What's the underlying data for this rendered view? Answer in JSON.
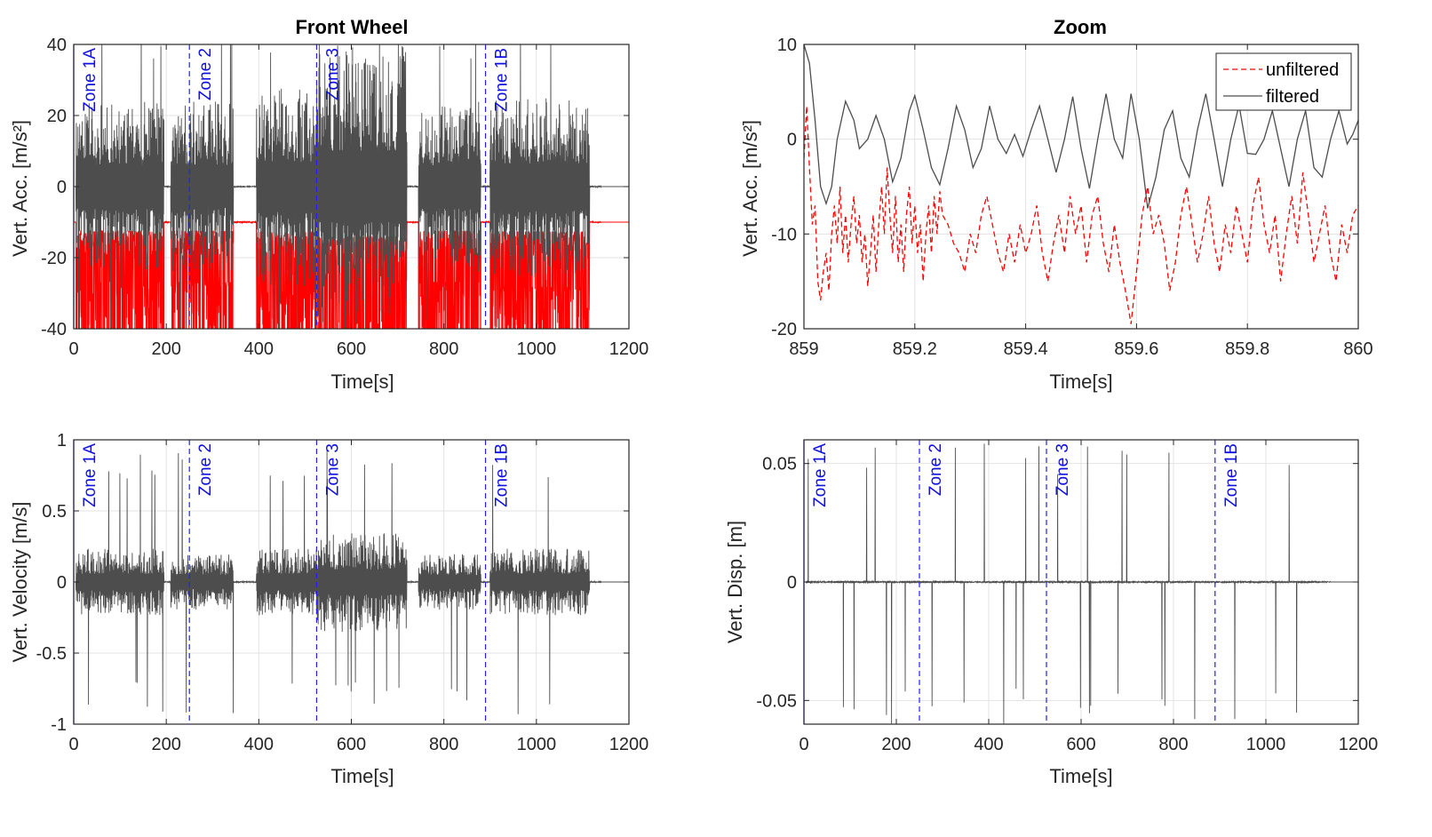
{
  "chart_data": [
    {
      "id": "acc",
      "type": "line",
      "title": "Front Wheel",
      "xlabel": "Time[s]",
      "ylabel": "Vert. Acc. [m/s²]",
      "xlim": [
        0,
        1200
      ],
      "ylim": [
        -40,
        40
      ],
      "xticks": [
        0,
        200,
        400,
        600,
        800,
        1000,
        1200
      ],
      "yticks": [
        -40,
        -20,
        0,
        20,
        40
      ],
      "grid": true,
      "zones": [
        {
          "x": 0,
          "label": "Zone 1A"
        },
        {
          "x": 250,
          "label": "Zone 2"
        },
        {
          "x": 525,
          "label": "Zone 3"
        },
        {
          "x": 890,
          "label": "Zone 1B"
        }
      ],
      "segments": [
        {
          "start": 5,
          "end": 195,
          "amp": 0.6
        },
        {
          "start": 210,
          "end": 345,
          "amp": 0.6
        },
        {
          "start": 395,
          "end": 525,
          "amp": 0.7
        },
        {
          "start": 525,
          "end": 720,
          "amp": 1.0
        },
        {
          "start": 745,
          "end": 880,
          "amp": 0.6
        },
        {
          "start": 900,
          "end": 1115,
          "amp": 0.65
        }
      ],
      "series": [
        {
          "name": "unfiltered",
          "color": "#ff0000",
          "offset": -10,
          "envelope_peak": 40,
          "quiet_level": -10
        },
        {
          "name": "filtered",
          "color": "#4d4d4d",
          "offset": 0,
          "envelope_peak": 40,
          "quiet_level": 0
        }
      ]
    },
    {
      "id": "zoom",
      "type": "line",
      "title": "Zoom",
      "xlabel": "Time[s]",
      "ylabel": "Vert. Acc. [m/s²]",
      "xlim": [
        859,
        860
      ],
      "ylim": [
        -20,
        10
      ],
      "xticks": [
        859,
        859.2,
        859.4,
        859.6,
        859.8,
        860
      ],
      "yticks": [
        -20,
        -10,
        0,
        10
      ],
      "grid": true,
      "legend": {
        "position": "top-right",
        "entries": [
          "unfiltered",
          "filtered"
        ]
      },
      "series": [
        {
          "name": "filtered",
          "color": "#4d4d4d",
          "style": "solid",
          "points": [
            [
              859.0,
              10
            ],
            [
              859.01,
              8
            ],
            [
              859.02,
              2
            ],
            [
              859.03,
              -5
            ],
            [
              859.04,
              -6.8
            ],
            [
              859.05,
              -5
            ],
            [
              859.06,
              0
            ],
            [
              859.075,
              4
            ],
            [
              859.09,
              2
            ],
            [
              859.1,
              -1
            ],
            [
              859.115,
              0
            ],
            [
              859.13,
              2.5
            ],
            [
              859.145,
              0
            ],
            [
              859.16,
              -4.5
            ],
            [
              859.175,
              -2
            ],
            [
              859.19,
              3
            ],
            [
              859.2,
              4.6
            ],
            [
              859.215,
              1
            ],
            [
              859.23,
              -3
            ],
            [
              859.245,
              -4.8
            ],
            [
              859.26,
              -1
            ],
            [
              859.275,
              3.5
            ],
            [
              859.29,
              1
            ],
            [
              859.305,
              -3
            ],
            [
              859.32,
              -1
            ],
            [
              859.335,
              3.5
            ],
            [
              859.35,
              0
            ],
            [
              859.365,
              -1.5
            ],
            [
              859.38,
              0.5
            ],
            [
              859.395,
              -1.8
            ],
            [
              859.41,
              1
            ],
            [
              859.425,
              3.5
            ],
            [
              859.44,
              0
            ],
            [
              859.455,
              -3.5
            ],
            [
              859.47,
              0
            ],
            [
              859.485,
              4.5
            ],
            [
              859.5,
              -1
            ],
            [
              859.515,
              -5.2
            ],
            [
              859.53,
              0
            ],
            [
              859.545,
              4.8
            ],
            [
              859.56,
              0
            ],
            [
              859.575,
              -2
            ],
            [
              859.59,
              4.8
            ],
            [
              859.605,
              0
            ],
            [
              859.62,
              -7.3
            ],
            [
              859.635,
              -4
            ],
            [
              859.65,
              1
            ],
            [
              859.665,
              3
            ],
            [
              859.68,
              -2
            ],
            [
              859.695,
              -4
            ],
            [
              859.71,
              1
            ],
            [
              859.725,
              4.8
            ],
            [
              859.74,
              0
            ],
            [
              859.755,
              -5
            ],
            [
              859.77,
              0
            ],
            [
              859.785,
              3.6
            ],
            [
              859.8,
              -1.5
            ],
            [
              859.815,
              -1.6
            ],
            [
              859.83,
              0
            ],
            [
              859.845,
              3
            ],
            [
              859.86,
              -1
            ],
            [
              859.875,
              -5
            ],
            [
              859.89,
              0
            ],
            [
              859.905,
              3
            ],
            [
              859.92,
              -3
            ],
            [
              859.935,
              -4
            ],
            [
              859.95,
              0
            ],
            [
              859.965,
              3
            ],
            [
              859.98,
              -0.5
            ],
            [
              859.99,
              0.5
            ],
            [
              860.0,
              2
            ]
          ]
        },
        {
          "name": "unfiltered",
          "color": "#ff0000",
          "style": "dashed",
          "points": [
            [
              859.0,
              -2
            ],
            [
              859.005,
              3.5
            ],
            [
              859.01,
              -3
            ],
            [
              859.015,
              -9
            ],
            [
              859.02,
              -7
            ],
            [
              859.025,
              -15
            ],
            [
              859.03,
              -17
            ],
            [
              859.035,
              -14
            ],
            [
              859.04,
              -12
            ],
            [
              859.045,
              -16
            ],
            [
              859.05,
              -10
            ],
            [
              859.055,
              -7
            ],
            [
              859.06,
              -11
            ],
            [
              859.065,
              -5
            ],
            [
              859.07,
              -12
            ],
            [
              859.075,
              -8
            ],
            [
              859.08,
              -13
            ],
            [
              859.085,
              -9
            ],
            [
              859.09,
              -6
            ],
            [
              859.095,
              -11
            ],
            [
              859.1,
              -8
            ],
            [
              859.105,
              -13
            ],
            [
              859.11,
              -10
            ],
            [
              859.115,
              -15.5
            ],
            [
              859.12,
              -12
            ],
            [
              859.125,
              -8
            ],
            [
              859.13,
              -14
            ],
            [
              859.135,
              -9
            ],
            [
              859.14,
              -5
            ],
            [
              859.145,
              -10
            ],
            [
              859.15,
              -3
            ],
            [
              859.155,
              -8
            ],
            [
              859.16,
              -12
            ],
            [
              859.165,
              -6
            ],
            [
              859.17,
              -13
            ],
            [
              859.175,
              -9
            ],
            [
              859.18,
              -14
            ],
            [
              859.185,
              -8
            ],
            [
              859.19,
              -5
            ],
            [
              859.195,
              -11
            ],
            [
              859.2,
              -7
            ],
            [
              859.205,
              -12
            ],
            [
              859.21,
              -9
            ],
            [
              859.215,
              -15
            ],
            [
              859.22,
              -10
            ],
            [
              859.225,
              -7
            ],
            [
              859.23,
              -12
            ],
            [
              859.235,
              -6
            ],
            [
              859.24,
              -10
            ],
            [
              859.245,
              -5.5
            ],
            [
              859.25,
              -8
            ],
            [
              859.26,
              -9
            ],
            [
              859.27,
              -11
            ],
            [
              859.28,
              -12
            ],
            [
              859.29,
              -14
            ],
            [
              859.3,
              -10
            ],
            [
              859.31,
              -12
            ],
            [
              859.32,
              -8
            ],
            [
              859.33,
              -6
            ],
            [
              859.34,
              -9
            ],
            [
              859.35,
              -12
            ],
            [
              859.36,
              -14
            ],
            [
              859.37,
              -10
            ],
            [
              859.38,
              -13
            ],
            [
              859.39,
              -9
            ],
            [
              859.4,
              -12
            ],
            [
              859.41,
              -10
            ],
            [
              859.42,
              -7
            ],
            [
              859.43,
              -12
            ],
            [
              859.44,
              -15
            ],
            [
              859.45,
              -11
            ],
            [
              859.46,
              -8
            ],
            [
              859.47,
              -12
            ],
            [
              859.48,
              -6
            ],
            [
              859.49,
              -10
            ],
            [
              859.5,
              -7
            ],
            [
              859.51,
              -13
            ],
            [
              859.52,
              -8
            ],
            [
              859.53,
              -6
            ],
            [
              859.54,
              -11
            ],
            [
              859.55,
              -14
            ],
            [
              859.56,
              -9
            ],
            [
              859.57,
              -13
            ],
            [
              859.58,
              -16
            ],
            [
              859.59,
              -19.5
            ],
            [
              859.6,
              -14
            ],
            [
              859.61,
              -8
            ],
            [
              859.62,
              -5
            ],
            [
              859.63,
              -10
            ],
            [
              859.64,
              -8
            ],
            [
              859.65,
              -11
            ],
            [
              859.66,
              -16
            ],
            [
              859.67,
              -13
            ],
            [
              859.68,
              -8
            ],
            [
              859.69,
              -5
            ],
            [
              859.7,
              -9
            ],
            [
              859.71,
              -13
            ],
            [
              859.72,
              -10
            ],
            [
              859.73,
              -6
            ],
            [
              859.74,
              -11
            ],
            [
              859.75,
              -14
            ],
            [
              859.76,
              -9
            ],
            [
              859.77,
              -12
            ],
            [
              859.78,
              -7
            ],
            [
              859.79,
              -10
            ],
            [
              859.8,
              -13
            ],
            [
              859.81,
              -7
            ],
            [
              859.82,
              -4
            ],
            [
              859.83,
              -9
            ],
            [
              859.84,
              -12
            ],
            [
              859.85,
              -8
            ],
            [
              859.86,
              -15
            ],
            [
              859.87,
              -10
            ],
            [
              859.88,
              -6
            ],
            [
              859.89,
              -11
            ],
            [
              859.9,
              -3.5
            ],
            [
              859.91,
              -8
            ],
            [
              859.92,
              -13
            ],
            [
              859.93,
              -10
            ],
            [
              859.94,
              -7
            ],
            [
              859.95,
              -12
            ],
            [
              859.96,
              -15
            ],
            [
              859.97,
              -9
            ],
            [
              859.98,
              -12
            ],
            [
              859.99,
              -8
            ],
            [
              860.0,
              -7
            ]
          ]
        }
      ]
    },
    {
      "id": "vel",
      "type": "line",
      "title": "",
      "xlabel": "Time[s]",
      "ylabel": "Vert. Velocity [m/s]",
      "xlim": [
        0,
        1200
      ],
      "ylim": [
        -1,
        1
      ],
      "xticks": [
        0,
        200,
        400,
        600,
        800,
        1000,
        1200
      ],
      "yticks": [
        -1,
        -0.5,
        0,
        0.5,
        1
      ],
      "grid": true,
      "zones": [
        {
          "x": 0,
          "label": "Zone 1A"
        },
        {
          "x": 250,
          "label": "Zone 2"
        },
        {
          "x": 525,
          "label": "Zone 3"
        },
        {
          "x": 890,
          "label": "Zone 1B"
        }
      ],
      "segments": [
        {
          "start": 5,
          "end": 195,
          "amp": 0.3
        },
        {
          "start": 210,
          "end": 345,
          "amp": 0.25
        },
        {
          "start": 395,
          "end": 525,
          "amp": 0.3
        },
        {
          "start": 525,
          "end": 720,
          "amp": 0.45
        },
        {
          "start": 745,
          "end": 880,
          "amp": 0.25
        },
        {
          "start": 900,
          "end": 1115,
          "amp": 0.3
        }
      ],
      "series": [
        {
          "name": "filtered",
          "color": "#4d4d4d",
          "offset": 0,
          "envelope_peak": 0.78,
          "quiet_level": 0
        }
      ]
    },
    {
      "id": "disp",
      "type": "line",
      "title": "",
      "xlabel": "Time[s]",
      "ylabel": "Vert. Disp. [m]",
      "xlim": [
        0,
        1200
      ],
      "ylim": [
        -0.06,
        0.06
      ],
      "xticks": [
        0,
        200,
        400,
        600,
        800,
        1000,
        1200
      ],
      "yticks": [
        -0.05,
        0,
        0.05
      ],
      "grid": true,
      "zones": [
        {
          "x": 0,
          "label": "Zone 1A"
        },
        {
          "x": 250,
          "label": "Zone 2"
        },
        {
          "x": 525,
          "label": "Zone 3"
        },
        {
          "x": 890,
          "label": "Zone 1B"
        }
      ],
      "segments": [
        {
          "start": 5,
          "end": 200,
          "amp": 0.008
        },
        {
          "start": 210,
          "end": 350,
          "amp": 0.006
        },
        {
          "start": 390,
          "end": 525,
          "amp": 0.01
        },
        {
          "start": 525,
          "end": 720,
          "amp": 0.012
        },
        {
          "start": 730,
          "end": 880,
          "amp": 0.01
        },
        {
          "start": 905,
          "end": 1115,
          "amp": 0.01
        }
      ],
      "series": [
        {
          "name": "filtered",
          "color": "#4d4d4d",
          "offset": 0,
          "envelope_peak": 0.05,
          "quiet_level": 0
        }
      ]
    }
  ]
}
